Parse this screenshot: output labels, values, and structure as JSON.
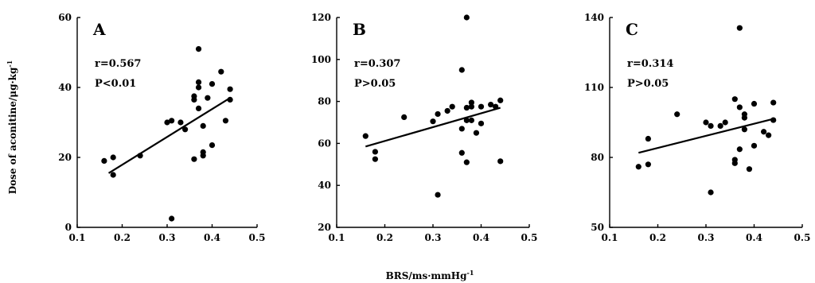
{
  "chart_data": [
    {
      "type": "scatter",
      "panel_label": "A",
      "stat_r": "r=0.567",
      "stat_p": "P<0.01",
      "xlim": [
        0.1,
        0.5
      ],
      "ylim": [
        0,
        60
      ],
      "xticks": [
        "0.1",
        "0.2",
        "0.3",
        "0.4",
        "0.5"
      ],
      "yticks": [
        "0",
        "20",
        "40",
        "60"
      ],
      "points": [
        [
          0.16,
          19
        ],
        [
          0.18,
          20
        ],
        [
          0.18,
          15
        ],
        [
          0.24,
          20.5
        ],
        [
          0.3,
          30
        ],
        [
          0.31,
          30.5
        ],
        [
          0.31,
          2.5
        ],
        [
          0.33,
          30
        ],
        [
          0.34,
          28
        ],
        [
          0.36,
          37.5
        ],
        [
          0.36,
          36.5
        ],
        [
          0.36,
          19.5
        ],
        [
          0.37,
          51
        ],
        [
          0.37,
          41.5
        ],
        [
          0.37,
          40
        ],
        [
          0.37,
          34
        ],
        [
          0.38,
          29
        ],
        [
          0.38,
          21.5
        ],
        [
          0.38,
          20.5
        ],
        [
          0.39,
          37
        ],
        [
          0.4,
          41
        ],
        [
          0.4,
          23.5
        ],
        [
          0.42,
          44.5
        ],
        [
          0.43,
          30.5
        ],
        [
          0.44,
          39.5
        ],
        [
          0.44,
          36.5
        ]
      ],
      "fit_line": [
        [
          0.17,
          15.5
        ],
        [
          0.44,
          37
        ]
      ]
    },
    {
      "type": "scatter",
      "panel_label": "B",
      "stat_r": "r=0.307",
      "stat_p": "P>0.05",
      "xlim": [
        0.1,
        0.5
      ],
      "ylim": [
        20,
        120
      ],
      "xticks": [
        "0.1",
        "0.2",
        "0.3",
        "0.4",
        "0.5"
      ],
      "yticks": [
        "20",
        "40",
        "60",
        "80",
        "100",
        "120"
      ],
      "points": [
        [
          0.16,
          63.5
        ],
        [
          0.18,
          56
        ],
        [
          0.18,
          52.5
        ],
        [
          0.24,
          72.5
        ],
        [
          0.3,
          70.5
        ],
        [
          0.31,
          74
        ],
        [
          0.31,
          35.5
        ],
        [
          0.33,
          75.5
        ],
        [
          0.34,
          77.5
        ],
        [
          0.36,
          95
        ],
        [
          0.36,
          67
        ],
        [
          0.36,
          55.5
        ],
        [
          0.37,
          120
        ],
        [
          0.37,
          77
        ],
        [
          0.37,
          71
        ],
        [
          0.37,
          51
        ],
        [
          0.38,
          79.5
        ],
        [
          0.38,
          77.5
        ],
        [
          0.38,
          71
        ],
        [
          0.39,
          65
        ],
        [
          0.4,
          69.5
        ],
        [
          0.4,
          77.5
        ],
        [
          0.42,
          78.5
        ],
        [
          0.43,
          77.5
        ],
        [
          0.44,
          80.5
        ],
        [
          0.44,
          51.5
        ]
      ],
      "fit_line": [
        [
          0.16,
          58.5
        ],
        [
          0.44,
          77
        ]
      ]
    },
    {
      "type": "scatter",
      "panel_label": "C",
      "stat_r": "r=0.314",
      "stat_p": "P>0.05",
      "xlim": [
        0.1,
        0.5
      ],
      "ylim": [
        50,
        140
      ],
      "xticks": [
        "0.1",
        "0.2",
        "0.3",
        "0.4",
        "0.5"
      ],
      "yticks": [
        "50",
        "80",
        "110",
        "140"
      ],
      "points": [
        [
          0.16,
          76
        ],
        [
          0.18,
          77
        ],
        [
          0.18,
          88
        ],
        [
          0.24,
          98.5
        ],
        [
          0.3,
          95
        ],
        [
          0.31,
          93.5
        ],
        [
          0.31,
          65
        ],
        [
          0.33,
          93.5
        ],
        [
          0.34,
          95
        ],
        [
          0.36,
          105
        ],
        [
          0.36,
          79
        ],
        [
          0.36,
          77.5
        ],
        [
          0.37,
          135.5
        ],
        [
          0.37,
          101.5
        ],
        [
          0.37,
          83.5
        ],
        [
          0.38,
          98.5
        ],
        [
          0.38,
          97
        ],
        [
          0.38,
          92
        ],
        [
          0.39,
          75
        ],
        [
          0.4,
          103
        ],
        [
          0.4,
          85
        ],
        [
          0.42,
          91
        ],
        [
          0.43,
          89.5
        ],
        [
          0.44,
          103.5
        ],
        [
          0.44,
          96
        ]
      ],
      "fit_line": [
        [
          0.16,
          82
        ],
        [
          0.44,
          96.5
        ]
      ]
    }
  ],
  "shared": {
    "ylabel": "Dose of aconitine/μg·kg",
    "ylabel_sup": "-1",
    "xlabel": "BRS/ms·mmHg",
    "xlabel_sup": "-1"
  }
}
